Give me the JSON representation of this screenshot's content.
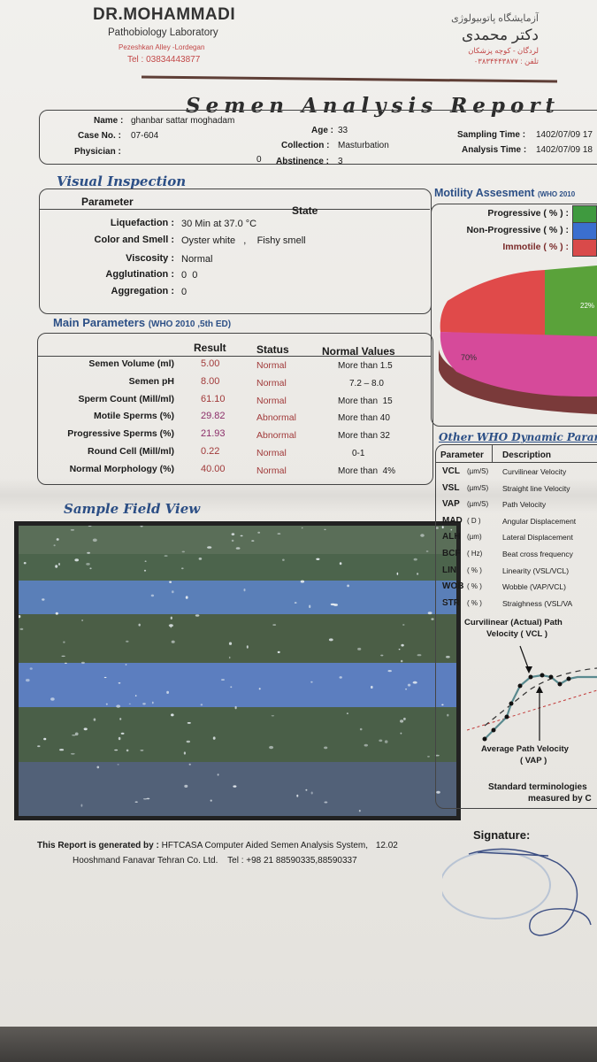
{
  "lab": {
    "name": "DR.MOHAMMADI",
    "subtitle": "Pathobiology Laboratory",
    "address": "Pezeshkan Alley -Lordegan",
    "tel": "Tel : 03834443877",
    "fa_line1": "آزمایشگاه پاتوبیولوژی",
    "fa_line2": "دکتر محمدی",
    "fa_line3": "لردگان - کوچه پزشکان",
    "fa_line4": "تلفن : ۰۳۸۳۴۴۴۳۸۷۷"
  },
  "title": "Semen Analysis Report",
  "patient": {
    "name_label": "Name :",
    "name": "ghanbar sattar moghadam",
    "age_label": "Age :",
    "age": "33",
    "case_label": "Case No. :",
    "case": "07-604",
    "collection_label": "Collection :",
    "collection": "Masturbation",
    "physician_label": "Physician :",
    "physician_value": "0",
    "abstinence_label": "Abstinence :",
    "abstinence": "3",
    "sampling_label": "Sampling Time :",
    "sampling": "1402/07/09  17",
    "analysis_label": "Analysis Time :",
    "analysis": "1402/07/09  18"
  },
  "visual": {
    "heading": "Visual Inspection",
    "col_parameter": "Parameter",
    "col_state": "State",
    "rows": [
      {
        "label": "Liquefaction :",
        "value": "30 Min at 37.0 °C"
      },
      {
        "label": "Color and Smell :",
        "value": "Oyster white   ,    Fishy smell"
      },
      {
        "label": "Viscosity :",
        "value": "Normal"
      },
      {
        "label": "Agglutination :",
        "value": "0  0"
      },
      {
        "label": "Aggregation :",
        "value": "0"
      }
    ]
  },
  "main": {
    "heading": "Main Parameters",
    "heading_note": "(WHO 2010 ,5th ED)",
    "col_result": "Result",
    "col_status": "Status",
    "col_normal": "Normal Values",
    "rows": [
      {
        "label": "Semen Volume (ml)",
        "result": "5.00",
        "status": "Normal",
        "normal": "More than 1.5",
        "abnormal": false
      },
      {
        "label": "Semen pH",
        "result": "8.00",
        "status": "Normal",
        "normal": "7.2 – 8.0",
        "abnormal": false
      },
      {
        "label": "Sperm Count (Mill/ml)",
        "result": "61.10",
        "status": "Normal",
        "normal": "More than  15",
        "abnormal": false
      },
      {
        "label": "Motile Sperms (%)",
        "result": "29.82",
        "status": "Abnormal",
        "normal": "More than 40",
        "abnormal": true
      },
      {
        "label": "Progressive Sperms (%)",
        "result": "21.93",
        "status": "Abnormal",
        "normal": "More than 32",
        "abnormal": true
      },
      {
        "label": "Round Cell (Mill/ml)",
        "result": "0.22",
        "status": "Normal",
        "normal": "0-1",
        "abnormal": false
      },
      {
        "label": "Normal Morphology (%)",
        "result": "40.00",
        "status": "Normal",
        "normal": "More than  4%",
        "abnormal": false
      }
    ]
  },
  "sample": {
    "heading": "Sample Field View"
  },
  "motility": {
    "heading": "Motility Assesment",
    "heading_note": "(WHO 2010",
    "rows": [
      {
        "label": "Progressive  ( % ) :",
        "color": "#3f9a3f"
      },
      {
        "label": "Non-Progressive  ( % ) :",
        "color": "#3b6fcf"
      },
      {
        "label": "Immotile  ( % ) :",
        "color": "#d94a4a"
      }
    ],
    "pie_label_big": "70%",
    "pie_label_small": "22%"
  },
  "dynamic": {
    "heading": "Other WHO Dynamic Parame",
    "col_parameter": "Parameter",
    "col_description": "Description",
    "rows": [
      {
        "p": "VCL",
        "u": "(µm/S)",
        "d": "Curvilinear Velocity"
      },
      {
        "p": "VSL",
        "u": "(µm/S)",
        "d": "Straight line Velocity"
      },
      {
        "p": "VAP",
        "u": "(µm/S)",
        "d": "Path Velocity"
      },
      {
        "p": "MAD",
        "u": "( D )",
        "d": "Angular Displacement"
      },
      {
        "p": "ALH",
        "u": "(µm)",
        "d": "Lateral Displacement"
      },
      {
        "p": "BCF",
        "u": "( Hz)",
        "d": "Beat cross frequency"
      },
      {
        "p": "LIN",
        "u": "( % )",
        "d": "Linearity (VSL/VCL)"
      },
      {
        "p": "WOB",
        "u": "( % )",
        "d": "Wobble  (VAP/VCL)"
      },
      {
        "p": "STR",
        "u": "( % )",
        "d": "Straighness (VSL/VA"
      }
    ],
    "diagram_top_line1": "Curvilinear (Actual) Path",
    "diagram_top_line2": "Velocity ( VCL )",
    "diagram_bottom_line1": "Average Path Velocity",
    "diagram_bottom_line2": "( VAP )",
    "terms_line1": "Standard terminologies",
    "terms_line2": "measured by C"
  },
  "footer": {
    "generated_label": "This Report is generated by :",
    "generated_by": "HFTCASA Computer Aided Semen Analysis System,",
    "version": "12.02",
    "company": "Hooshmand Fanavar Tehran Co. Ltd.",
    "tel": "Tel : +98 21 88590335,88590337",
    "signature_label": "Signature:"
  }
}
